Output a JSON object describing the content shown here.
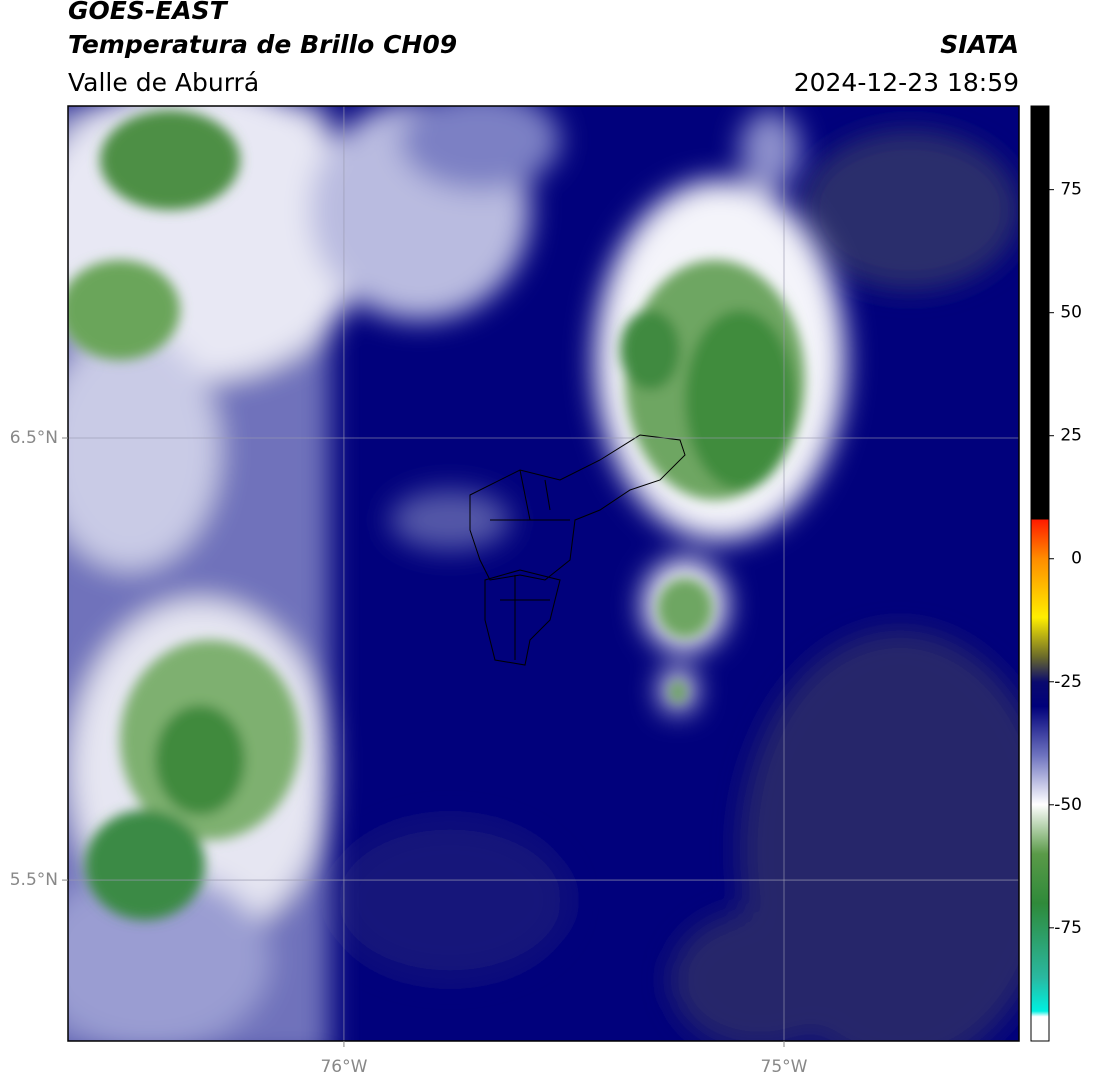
{
  "header": {
    "title": "GOES-EAST",
    "subtitle": "Temperatura de Brillo CH09",
    "region": "Valle de Aburrá",
    "agency": "SIATA",
    "datetime": "2024-12-23 18:59"
  },
  "map": {
    "lonlim": [
      -76.627,
      -74.466
    ],
    "latlim": [
      5.136,
      7.251
    ],
    "lonticks": [
      {
        "value": -76,
        "label": "76°W"
      },
      {
        "value": -75,
        "label": "75°W"
      }
    ],
    "latticks": [
      {
        "value": 6.5,
        "label": "6.5°N"
      },
      {
        "value": 5.5,
        "label": "5.5°N"
      }
    ]
  },
  "colorbar": {
    "lim": [
      -98,
      92
    ],
    "ticks": [
      75,
      50,
      25,
      0,
      -25,
      -50,
      -75
    ]
  }
}
